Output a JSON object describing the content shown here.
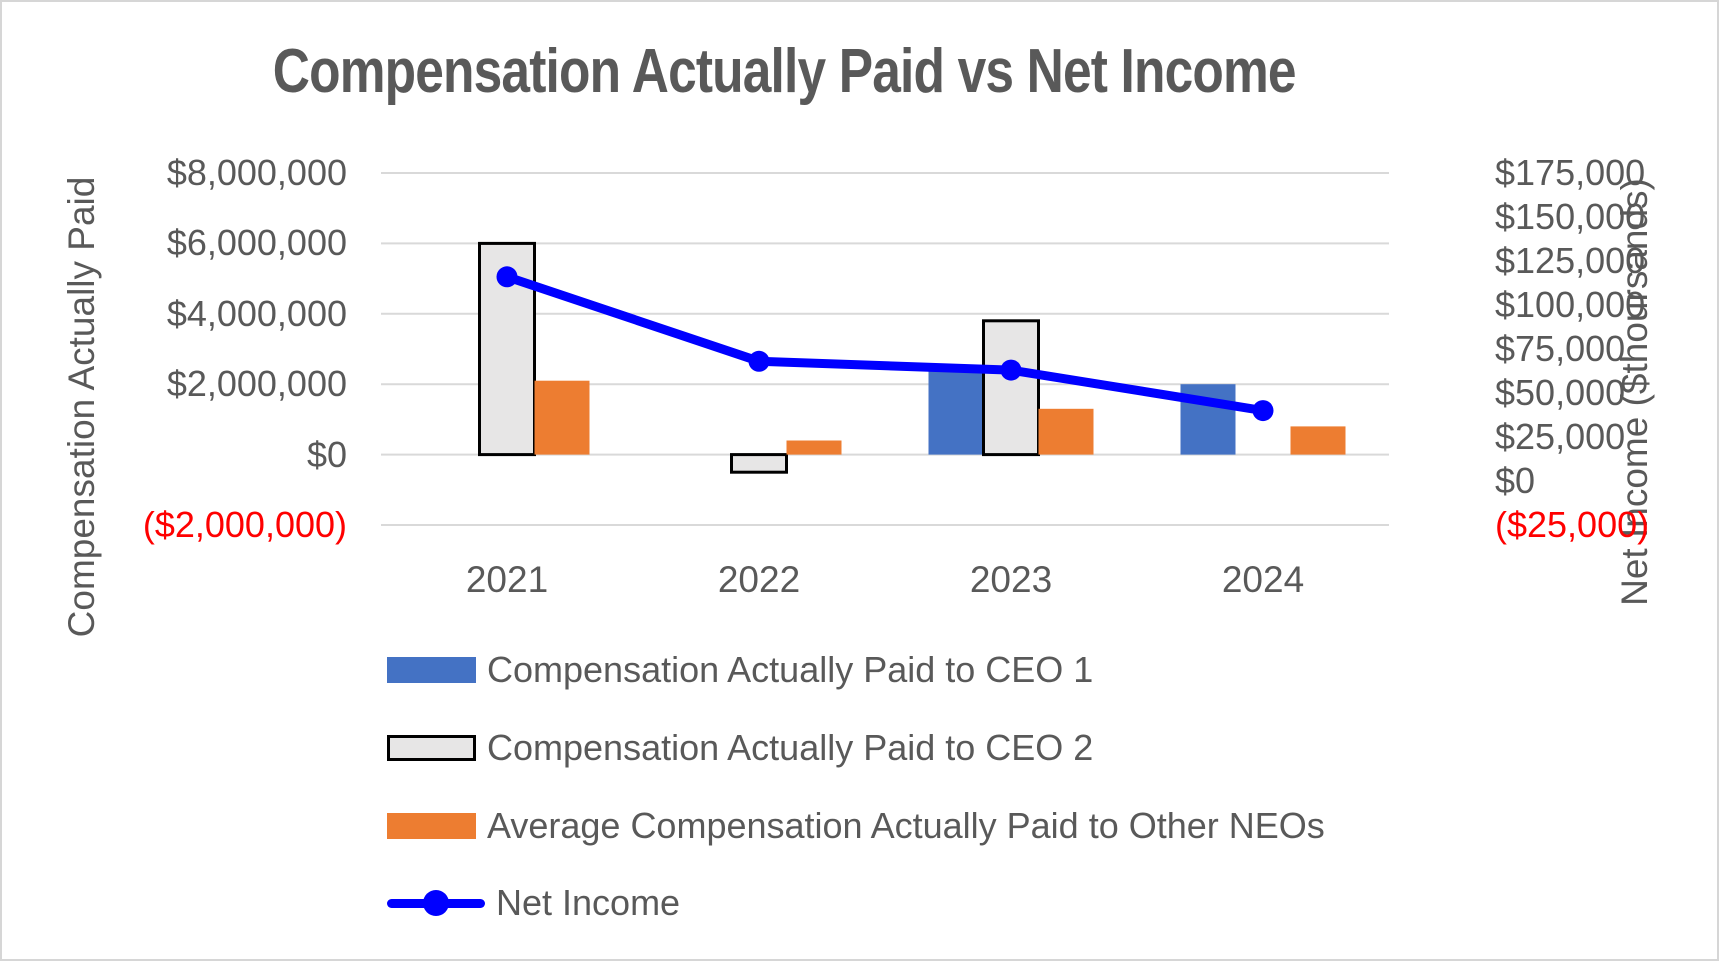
{
  "page": {
    "background": "#FFFFFF",
    "border_color": "#D6D6D6"
  },
  "title": {
    "text": "Compensation Actually Paid vs Net Income",
    "color": "#595959"
  },
  "chart_data": {
    "type": "combo",
    "categories": [
      "2021",
      "2022",
      "2023",
      "2024"
    ],
    "series": [
      {
        "name": "Compensation Actually Paid to CEO 1",
        "type": "bar",
        "axis": "left",
        "color": "#4472C4",
        "values": [
          null,
          null,
          2400000,
          2000000
        ]
      },
      {
        "name": "Compensation Actually Paid to CEO 2",
        "type": "bar",
        "axis": "left",
        "color": "#E7E6E6",
        "border_color": "#000000",
        "values": [
          6000000,
          -500000,
          3800000,
          null
        ]
      },
      {
        "name": "Average Compensation Actually Paid to Other NEOs",
        "type": "bar",
        "axis": "left",
        "color": "#ED7D31",
        "values": [
          2100000,
          400000,
          1300000,
          800000
        ]
      },
      {
        "name": "Net Income",
        "type": "line",
        "axis": "right",
        "color": "#0000FF",
        "values": [
          116000,
          68000,
          63000,
          40000
        ]
      }
    ],
    "left_axis": {
      "title": "Compensation Actually Paid",
      "tick_labels": [
        "$8,000,000",
        "$6,000,000",
        "$4,000,000",
        "$2,000,000",
        "$0",
        "($2,000,000)"
      ],
      "tick_values": [
        8000000,
        6000000,
        4000000,
        2000000,
        0,
        -2000000
      ],
      "range": [
        -2000000,
        8000000
      ],
      "label_color": "#595959",
      "negative_label_color": "#FF0000"
    },
    "right_axis": {
      "title": "Net Income ($thoursands)",
      "tick_labels": [
        "$175,000",
        "$150,000",
        "$125,000",
        "$100,000",
        "$75,000",
        "$50,000",
        "$25,000",
        "$0",
        "($25,000)"
      ],
      "tick_values": [
        175000,
        150000,
        125000,
        100000,
        75000,
        50000,
        25000,
        0,
        -25000
      ],
      "range": [
        -25000,
        175000
      ],
      "label_color": "#595959",
      "negative_label_color": "#FF0000"
    },
    "gridlines": true,
    "gridline_color": "#D9D9D9",
    "legend_position": "bottom-left"
  }
}
